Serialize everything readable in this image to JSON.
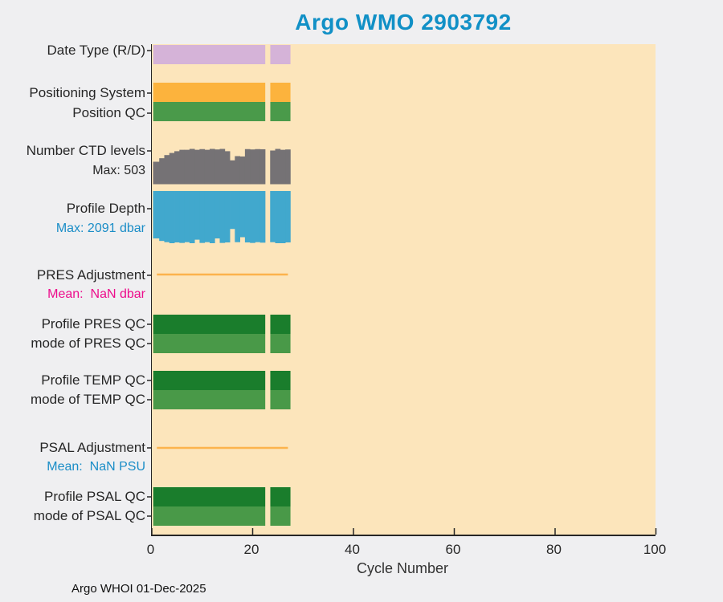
{
  "chart_data": {
    "type": "bar",
    "title": "Argo WMO 2903792",
    "xlabel": "Cycle Number",
    "footer": "Argo WHOI 01-Dec-2025",
    "xlim": [
      0,
      100
    ],
    "xticks": [
      0,
      20,
      40,
      60,
      80,
      100
    ],
    "grid": "off",
    "legend": "none",
    "plot_bg_color": "#fce5bb",
    "title_color": "#1190c6",
    "cycles": [
      1,
      2,
      3,
      4,
      5,
      6,
      7,
      8,
      9,
      10,
      11,
      12,
      13,
      14,
      15,
      16,
      17,
      18,
      19,
      20,
      21,
      22,
      24,
      25,
      26,
      27
    ],
    "cycle_segments": [
      [
        1,
        22
      ],
      [
        24,
        27
      ]
    ],
    "missing_cycles": [
      23
    ],
    "tracks": [
      {
        "id": "date_type",
        "label": "Date Type (R/D)",
        "kind": "flat",
        "color": "#d5b3d8"
      },
      {
        "id": "positioning_system",
        "label": "Positioning System",
        "kind": "flat",
        "color": "#fcb33d"
      },
      {
        "id": "position_qc",
        "label": "Position QC",
        "kind": "flat",
        "color": "#4a9a4a"
      },
      {
        "id": "n_ctd_levels",
        "label": "Number CTD levels",
        "sublabel": "Max: 503",
        "sublabel_color": "#262626",
        "kind": "value_up",
        "color": "#757275",
        "max": 503,
        "values": [
          320,
          370,
          415,
          445,
          470,
          490,
          490,
          503,
          490,
          500,
          490,
          503,
          495,
          503,
          470,
          340,
          400,
          395,
          500,
          495,
          500,
          498,
          480,
          503,
          490,
          495
        ]
      },
      {
        "id": "profile_depth",
        "label": "Profile Depth",
        "sublabel": "Max: 2091 dbar",
        "sublabel_color": "#1a8dc7",
        "kind": "value_down",
        "color": "#41a8cd",
        "max": 2091,
        "values": [
          1900,
          2000,
          2050,
          2091,
          2060,
          2080,
          2050,
          2091,
          1950,
          2080,
          2050,
          2091,
          1900,
          2080,
          2060,
          1520,
          2050,
          1850,
          2060,
          2080,
          2050,
          2070,
          2050,
          2091,
          2091,
          2060
        ]
      },
      {
        "id": "pres_adjustment",
        "label": "PRES Adjustment",
        "sublabel": "Mean:  NaN dbar",
        "sublabel_color": "#ed0d8c",
        "kind": "line",
        "color": "#fcb34c",
        "value": 0,
        "line_cycles": [
          1,
          27
        ]
      },
      {
        "id": "profile_pres_qc",
        "label": "Profile PRES QC",
        "kind": "flat",
        "color": "#1a7d2c"
      },
      {
        "id": "mode_pres_qc",
        "label": "mode of PRES QC",
        "kind": "flat",
        "color": "#499948"
      },
      {
        "id": "profile_temp_qc",
        "label": "Profile TEMP QC",
        "kind": "flat",
        "color": "#1a7d2c"
      },
      {
        "id": "mode_temp_qc",
        "label": "mode of TEMP QC",
        "kind": "flat",
        "color": "#499948"
      },
      {
        "id": "psal_adjustment",
        "label": "PSAL Adjustment",
        "sublabel": "Mean:  NaN PSU",
        "sublabel_color": "#1a8dc7",
        "kind": "line",
        "color": "#fcb34c",
        "value": 0,
        "line_cycles": [
          1,
          27
        ]
      },
      {
        "id": "profile_psal_qc",
        "label": "Profile PSAL QC",
        "kind": "flat",
        "color": "#1a7d2c"
      },
      {
        "id": "mode_psal_qc",
        "label": "mode of PSAL QC",
        "kind": "flat",
        "color": "#499948"
      }
    ]
  }
}
